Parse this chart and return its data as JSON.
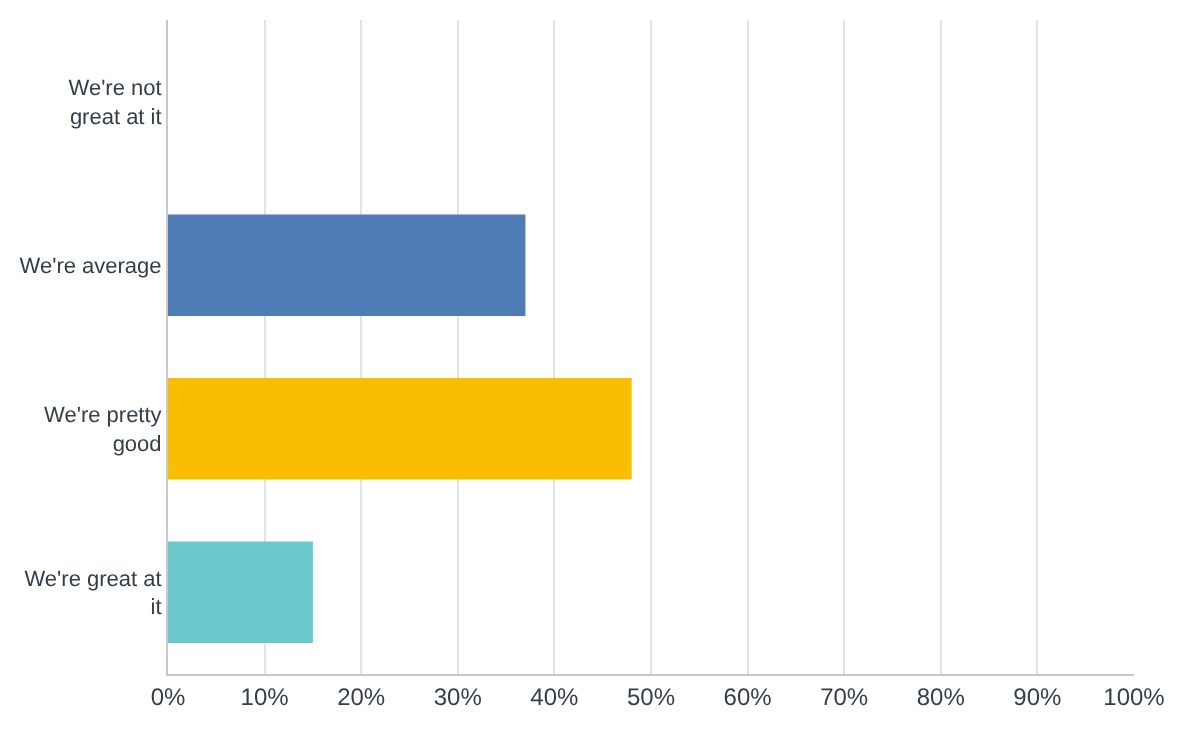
{
  "chart_data": {
    "type": "bar",
    "orientation": "horizontal",
    "categories": [
      "We're not great at it",
      "We're average",
      "We're pretty good",
      "We're great at it"
    ],
    "values": [
      0,
      37,
      48,
      15
    ],
    "colors": [
      "#6fc8ce",
      "#507cb6",
      "#f9be00",
      "#6bc8cd"
    ],
    "xlim": [
      0,
      100
    ],
    "xticks": [
      {
        "value": 0,
        "label": "0%"
      },
      {
        "value": 10,
        "label": "10%"
      },
      {
        "value": 20,
        "label": "20%"
      },
      {
        "value": 30,
        "label": "30%"
      },
      {
        "value": 40,
        "label": "40%"
      },
      {
        "value": 50,
        "label": "50%"
      },
      {
        "value": 60,
        "label": "60%"
      },
      {
        "value": 70,
        "label": "70%"
      },
      {
        "value": 80,
        "label": "80%"
      },
      {
        "value": 90,
        "label": "90%"
      },
      {
        "value": 100,
        "label": "100%"
      }
    ],
    "grid": "x",
    "legend": false
  }
}
